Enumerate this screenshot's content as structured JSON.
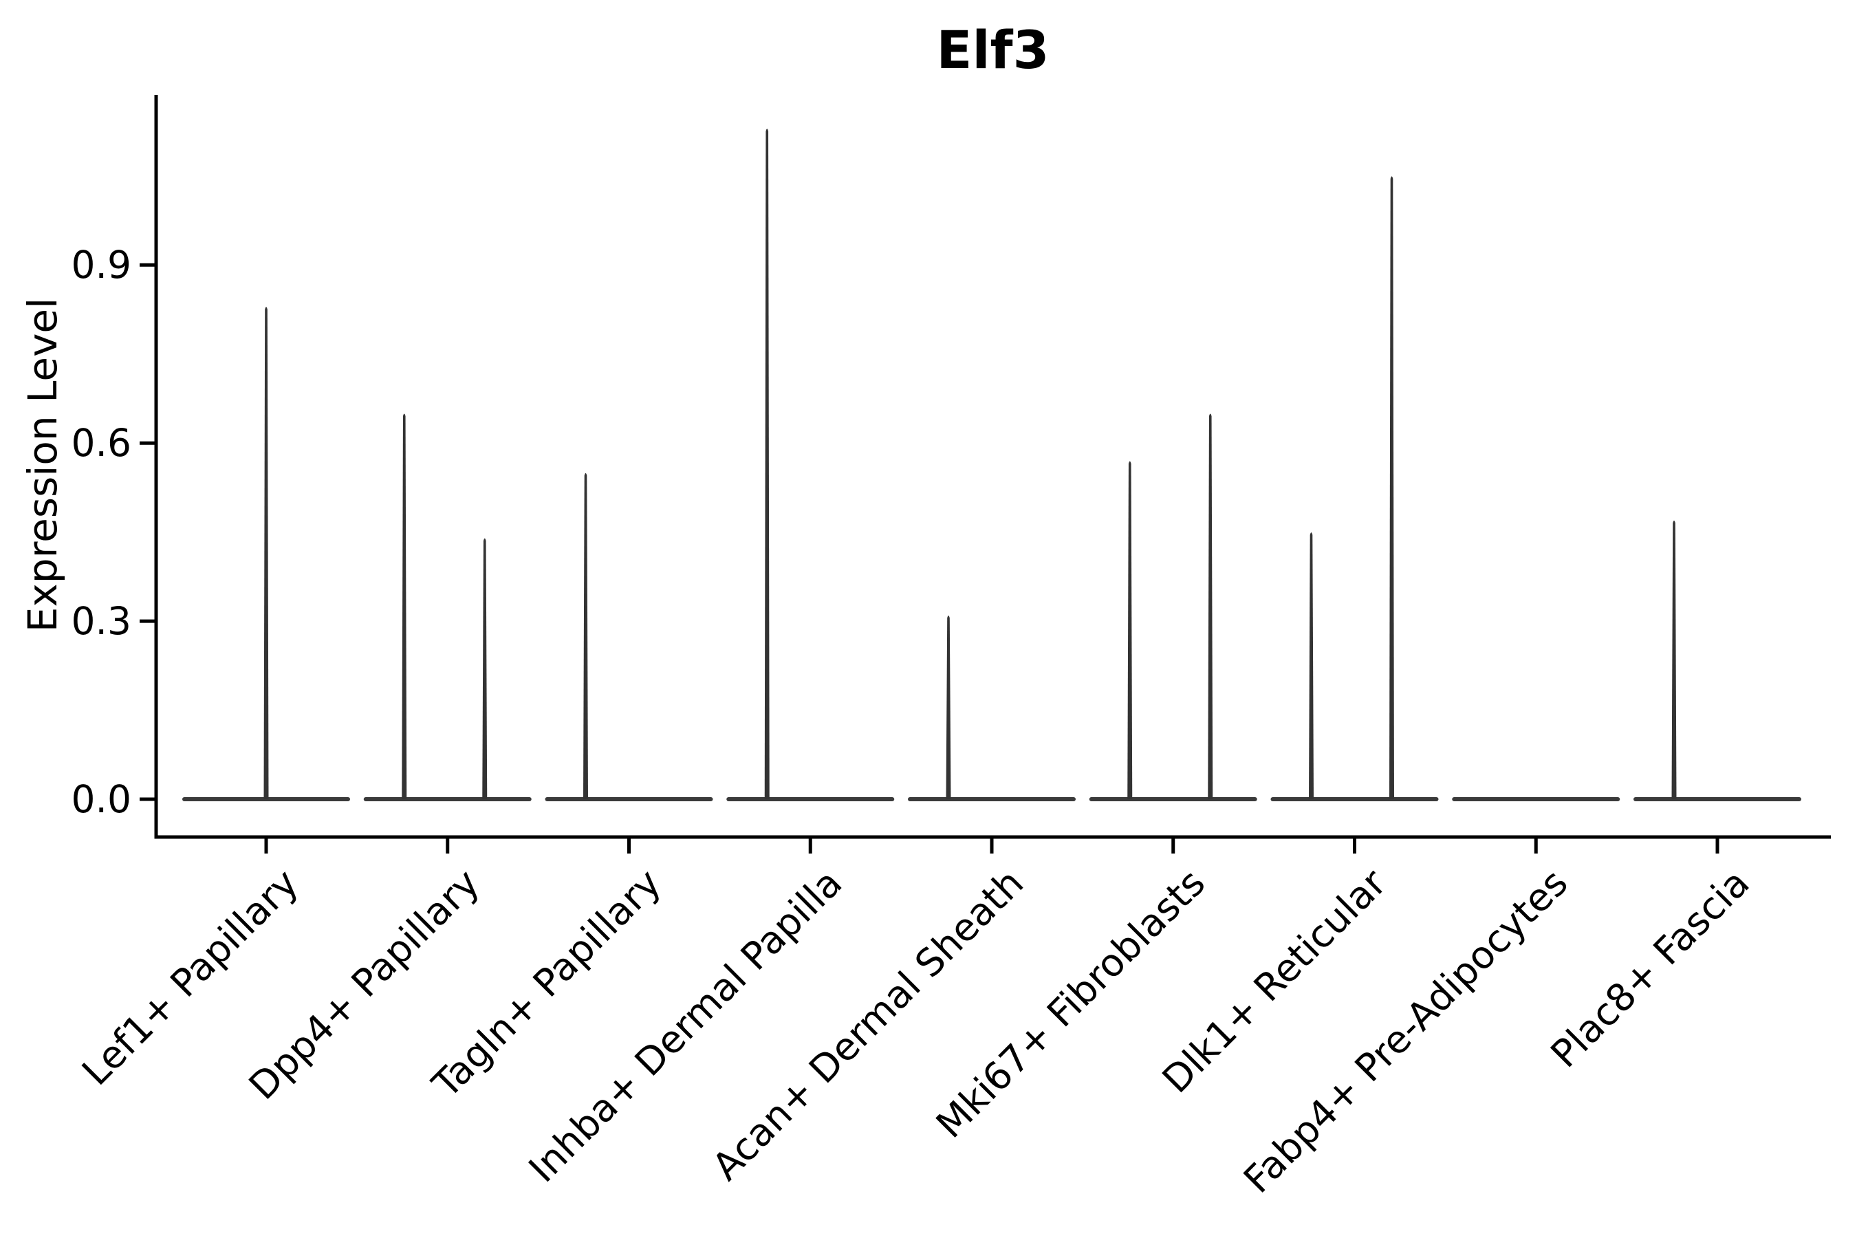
{
  "chart_data": {
    "type": "violin",
    "title": "Elf3",
    "ylabel": "Expression Level",
    "xlabel": "",
    "yticks": [
      0.0,
      0.3,
      0.6,
      0.9
    ],
    "ylim": [
      -0.06,
      1.18
    ],
    "grid": false,
    "legend": "none",
    "violin_color": "#333333",
    "violin_base_color": "#3a3a3a",
    "axis_color": "#000000",
    "categories": [
      "Lef1+ Papillary",
      "Dpp4+ Papillary",
      "Tagln+ Papillary",
      "Inhba+ Dermal Papilla",
      "Acan+ Dermal Sheath",
      "Mki67+ Fibroblasts",
      "Dlk1+ Reticular",
      "Fabp4+ Pre-Adipocytes",
      "Plac8+ Fascia"
    ],
    "violins": [
      {
        "category": "Lef1+ Papillary",
        "spikes": [
          {
            "pos": "center",
            "max": 0.83
          }
        ]
      },
      {
        "category": "Dpp4+ Papillary",
        "spikes": [
          {
            "pos": "left",
            "max": 0.65
          },
          {
            "pos": "right",
            "max": 0.44
          }
        ]
      },
      {
        "category": "Tagln+ Papillary",
        "spikes": [
          {
            "pos": "left",
            "max": 0.55
          }
        ]
      },
      {
        "category": "Inhba+ Dermal Papilla",
        "spikes": [
          {
            "pos": "left",
            "max": 1.13
          }
        ]
      },
      {
        "category": "Acan+ Dermal Sheath",
        "spikes": [
          {
            "pos": "left",
            "max": 0.31
          }
        ]
      },
      {
        "category": "Mki67+ Fibroblasts",
        "spikes": [
          {
            "pos": "left",
            "max": 0.57
          },
          {
            "pos": "right",
            "max": 0.65
          }
        ]
      },
      {
        "category": "Dlk1+ Reticular",
        "spikes": [
          {
            "pos": "left",
            "max": 0.45
          },
          {
            "pos": "right",
            "max": 1.05
          }
        ]
      },
      {
        "category": "Fabp4+ Pre-Adipocytes",
        "spikes": []
      },
      {
        "category": "Plac8+ Fascia",
        "spikes": [
          {
            "pos": "left",
            "max": 0.47
          }
        ]
      }
    ]
  }
}
